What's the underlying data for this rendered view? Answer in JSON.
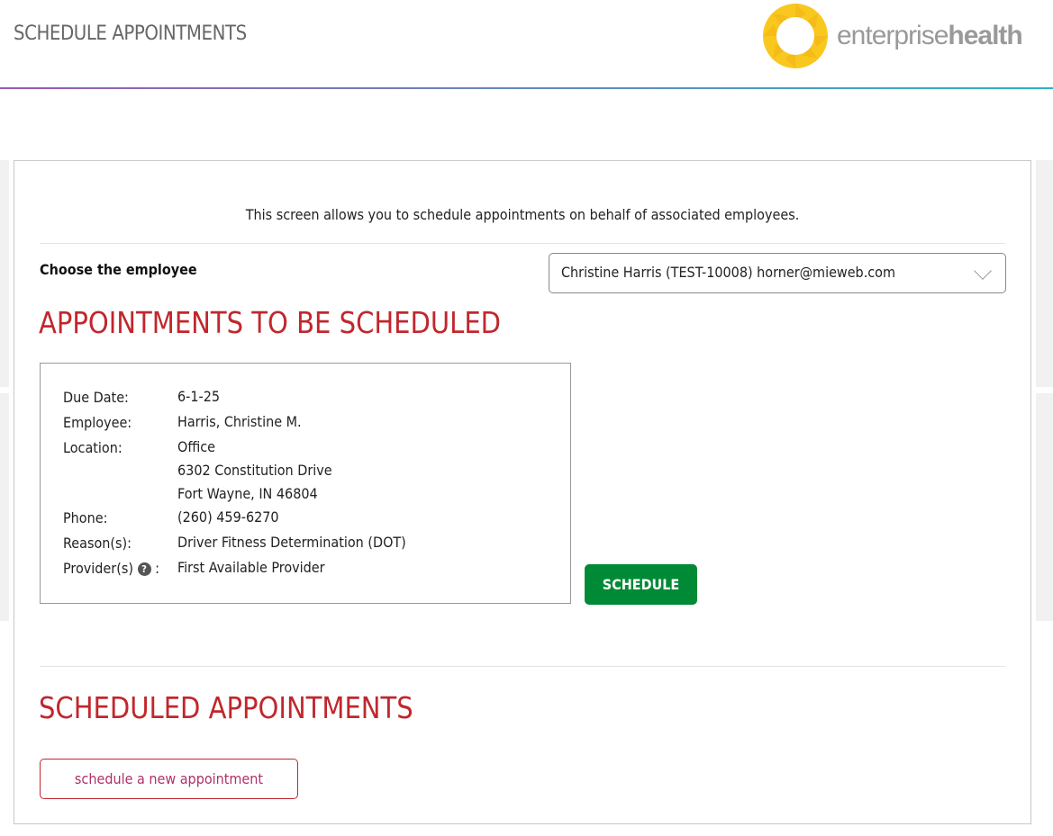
{
  "header": {
    "title": "SCHEDULE APPOINTMENTS",
    "logo": {
      "text_light": "enterprise",
      "text_bold": "health",
      "sun_color": "#f9c81e"
    }
  },
  "intro": "This screen allows you to schedule appointments on behalf of associated employees.",
  "employee": {
    "label": "Choose the employee",
    "selected": "Christine Harris (TEST-10008) horner@mieweb.com"
  },
  "to_schedule": {
    "heading": "APPOINTMENTS TO BE SCHEDULED",
    "fields": [
      {
        "label": "Due Date:",
        "value": [
          "6-1-25"
        ]
      },
      {
        "label": "Employee:",
        "value": [
          "Harris, Christine M."
        ]
      },
      {
        "label": "Location:",
        "value": [
          "Office",
          "6302 Constitution Drive",
          "Fort Wayne, IN 46804"
        ]
      },
      {
        "label": "Phone:",
        "value": [
          "(260) 459-6270"
        ]
      },
      {
        "label": "Reason(s):",
        "value": [
          "Driver Fitness Determination (DOT)"
        ]
      },
      {
        "label": "Provider(s)",
        "value": [
          "First Available Provider"
        ]
      }
    ],
    "schedule_button": "SCHEDULE"
  },
  "scheduled": {
    "heading": "SCHEDULED APPOINTMENTS",
    "new_button": "schedule a new appointment"
  },
  "colors": {
    "accent": "#c0272d",
    "button": "#008a36"
  }
}
